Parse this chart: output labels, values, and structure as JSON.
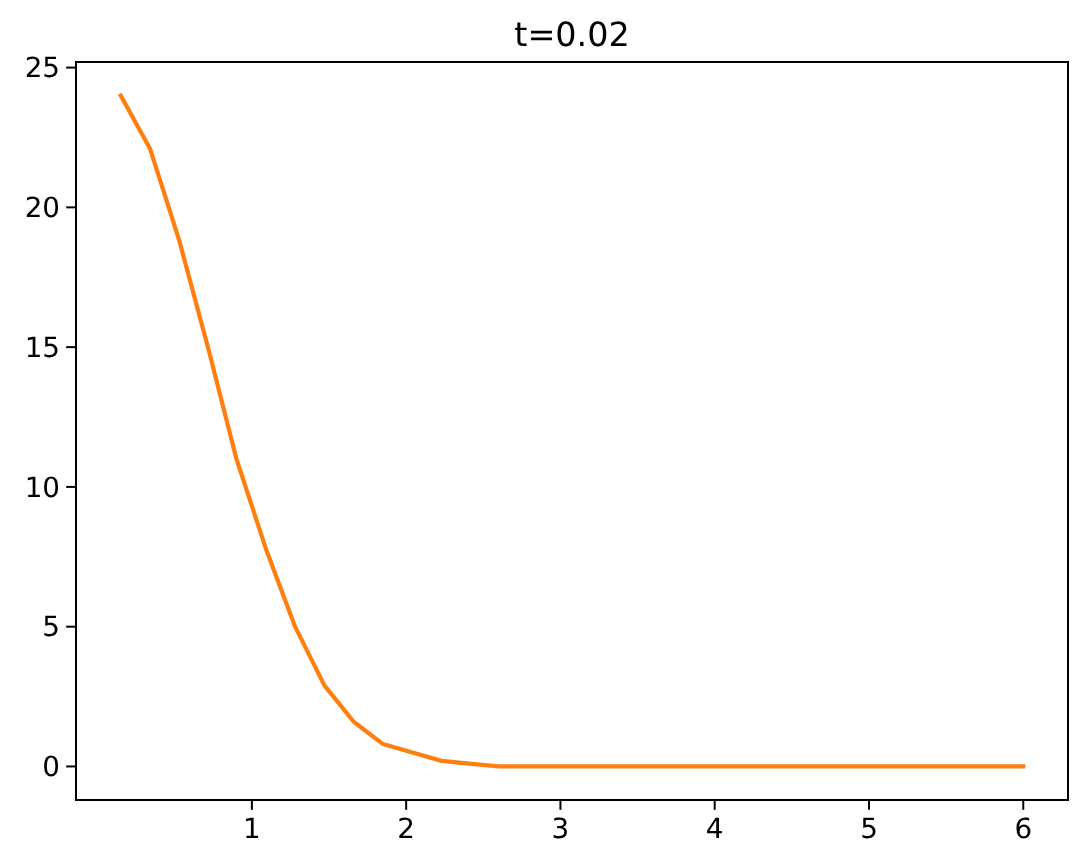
{
  "chart_data": {
    "type": "line",
    "title": "t=0.02",
    "x": [
      0.15,
      0.34,
      0.53,
      0.72,
      0.9,
      1.09,
      1.28,
      1.47,
      1.66,
      1.85,
      2.04,
      2.23,
      2.41,
      2.6,
      2.79,
      2.98,
      3.17,
      3.36,
      3.55,
      3.74,
      3.92,
      4.11,
      4.3,
      4.49,
      4.68,
      4.87,
      5.06,
      5.25,
      5.43,
      5.62,
      5.81,
      6.0
    ],
    "series": [
      {
        "color": "#ff7f0e",
        "values": [
          24,
          22.1,
          18.8,
          14.9,
          11.0,
          7.8,
          5.0,
          2.9,
          1.6,
          0.8,
          0.5,
          0.2,
          0.1,
          0,
          0,
          0,
          0,
          0,
          0,
          0,
          0,
          0,
          0,
          0,
          0,
          0,
          0,
          0,
          0,
          0,
          0,
          0
        ]
      }
    ],
    "xlim": [
      -0.14,
      6.29
    ],
    "ylim": [
      -1.2,
      25.2
    ],
    "xticks": [
      1,
      2,
      3,
      4,
      5,
      6
    ],
    "yticks": [
      0,
      5,
      10,
      15,
      20,
      25
    ],
    "line_style": "solid"
  }
}
